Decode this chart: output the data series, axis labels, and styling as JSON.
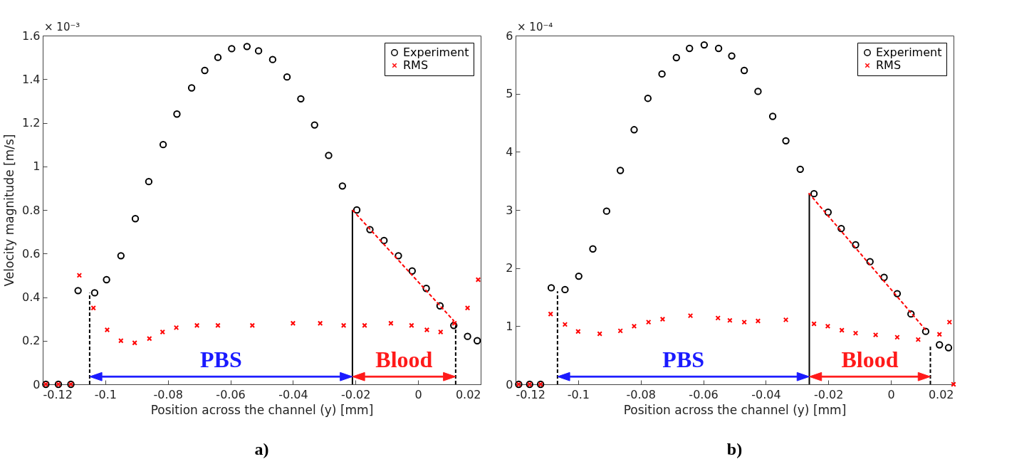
{
  "chart_data": [
    {
      "type": "scatter",
      "title": "a)",
      "xlabel": "Position across the channel (y) [mm]",
      "ylabel": "Velocity magnitude [m/s]",
      "xlim": [
        -0.12,
        0.02
      ],
      "xticks": [
        -0.12,
        -0.1,
        -0.08,
        -0.06,
        -0.04,
        -0.02,
        0,
        0.02
      ],
      "ylim": [
        0,
        1.6
      ],
      "yticks": [
        0,
        0.2,
        0.4,
        0.6,
        0.8,
        1,
        1.2,
        1.4,
        1.6
      ],
      "legend": "top right",
      "annotations": [
        "× 10⁻³",
        "PBS",
        "Blood"
      ],
      "series": [
        {
          "name": "Experiment",
          "marker": "circle",
          "color": "#000000",
          "x": [
            -0.119,
            -0.115,
            -0.111,
            -0.1087,
            -0.1034,
            -0.0996,
            -0.095,
            -0.0904,
            -0.0861,
            -0.0815,
            -0.0771,
            -0.0724,
            -0.0682,
            -0.064,
            -0.0596,
            -0.0547,
            -0.051,
            -0.0465,
            -0.0419,
            -0.0375,
            -0.0331,
            -0.0286,
            -0.0242,
            -0.0196,
            -0.0154,
            -0.0109,
            -0.0063,
            -0.0019,
            0.0026,
            0.007,
            0.0114,
            0.0158,
            0.0189
          ],
          "values": [
            0,
            0,
            0,
            0.43,
            0.42,
            0.48,
            0.59,
            0.76,
            0.93,
            1.1,
            1.24,
            1.36,
            1.44,
            1.5,
            1.54,
            1.55,
            1.53,
            1.49,
            1.41,
            1.31,
            1.19,
            1.05,
            0.91,
            0.8,
            0.71,
            0.66,
            0.59,
            0.52,
            0.44,
            0.36,
            0.27,
            0.22,
            0.2
          ]
        },
        {
          "name": "RMS",
          "marker": "cross",
          "color": "#ff0000",
          "x": [
            -0.119,
            -0.115,
            -0.111,
            -0.1083,
            -0.1038,
            -0.0994,
            -0.095,
            -0.0906,
            -0.0859,
            -0.0817,
            -0.0773,
            -0.0707,
            -0.064,
            -0.053,
            -0.04,
            -0.0313,
            -0.0238,
            -0.0171,
            -0.0087,
            -0.0021,
            0.0028,
            0.0072,
            0.0116,
            0.0158,
            0.0192
          ],
          "values": [
            0,
            0,
            0,
            0.5,
            0.35,
            0.25,
            0.2,
            0.19,
            0.21,
            0.24,
            0.26,
            0.27,
            0.27,
            0.27,
            0.28,
            0.28,
            0.27,
            0.27,
            0.28,
            0.27,
            0.25,
            0.24,
            0.28,
            0.35,
            0.48
          ]
        },
        {
          "type": "line",
          "color": "#000000",
          "line_style": "dashed",
          "x": [
            -0.105,
            -0.105
          ],
          "values": [
            0,
            0.42
          ]
        },
        {
          "type": "line",
          "color": "#000000",
          "line_style": "solid",
          "x": [
            -0.021,
            -0.021
          ],
          "values": [
            0,
            0.8
          ]
        },
        {
          "type": "line",
          "color": "#000000",
          "line_style": "dashed",
          "x": [
            0.012,
            0.012
          ],
          "values": [
            0,
            0.27
          ]
        },
        {
          "type": "line",
          "color": "#ff0000",
          "line_style": "dashed",
          "x": [
            -0.021,
            0.0115
          ],
          "values": [
            0.8,
            0.29
          ]
        }
      ]
    },
    {
      "type": "scatter",
      "title": "b)",
      "xlabel": "Position across the channel (y) [mm]",
      "xlim": [
        -0.12,
        0.02
      ],
      "xticks": [
        -0.12,
        -0.1,
        -0.08,
        -0.06,
        -0.04,
        -0.02,
        0,
        0.02
      ],
      "ylim": [
        0,
        6
      ],
      "yticks": [
        0,
        1,
        2,
        3,
        4,
        5,
        6
      ],
      "legend": "top right",
      "annotations": [
        "× 10⁻⁴",
        "PBS",
        "Blood"
      ],
      "series": [
        {
          "name": "Experiment",
          "marker": "circle",
          "color": "#000000",
          "x": [
            -0.119,
            -0.1155,
            -0.112,
            -0.1086,
            -0.1042,
            -0.0998,
            -0.0953,
            -0.0909,
            -0.0865,
            -0.0821,
            -0.0777,
            -0.0732,
            -0.0686,
            -0.0644,
            -0.0597,
            -0.0551,
            -0.0509,
            -0.0469,
            -0.0425,
            -0.0378,
            -0.0336,
            -0.029,
            -0.0246,
            -0.0201,
            -0.0159,
            -0.0113,
            -0.0067,
            -0.0022,
            0.002,
            0.0064,
            0.0111,
            0.0155,
            0.0184
          ],
          "values": [
            0,
            0,
            0,
            1.66,
            1.63,
            1.86,
            2.33,
            2.98,
            3.68,
            4.38,
            4.92,
            5.34,
            5.62,
            5.78,
            5.84,
            5.78,
            5.65,
            5.4,
            5.04,
            4.61,
            4.19,
            3.7,
            3.28,
            2.96,
            2.68,
            2.4,
            2.11,
            1.84,
            1.56,
            1.21,
            0.91,
            0.68,
            0.63
          ]
        },
        {
          "name": "RMS",
          "marker": "cross",
          "color": "#ff0000",
          "x": [
            -0.119,
            -0.1155,
            -0.112,
            -0.1088,
            -0.1042,
            -0.1,
            -0.0931,
            -0.0865,
            -0.0821,
            -0.0775,
            -0.073,
            -0.0641,
            -0.0553,
            -0.0515,
            -0.0469,
            -0.0425,
            -0.0336,
            -0.0246,
            -0.0202,
            -0.0157,
            -0.0113,
            -0.0049,
            0.002,
            0.0087,
            0.0155,
            0.0187,
            0.02
          ],
          "values": [
            0,
            0,
            0,
            1.21,
            1.03,
            0.91,
            0.87,
            0.92,
            1,
            1.07,
            1.12,
            1.18,
            1.14,
            1.1,
            1.07,
            1.09,
            1.11,
            1.04,
            1,
            0.93,
            0.88,
            0.85,
            0.81,
            0.77,
            0.86,
            1.07,
            0
          ]
        },
        {
          "type": "line",
          "color": "#000000",
          "line_style": "dashed",
          "x": [
            -0.1066,
            -0.1066
          ],
          "values": [
            0,
            1.6
          ]
        },
        {
          "type": "line",
          "color": "#000000",
          "line_style": "solid",
          "x": [
            -0.0261,
            -0.0261
          ],
          "values": [
            0,
            3.28
          ]
        },
        {
          "type": "line",
          "color": "#000000",
          "line_style": "dashed",
          "x": [
            0.0126,
            0.0126
          ],
          "values": [
            0,
            0.68
          ]
        },
        {
          "type": "line",
          "color": "#ff0000",
          "line_style": "dashed",
          "x": [
            -0.0263,
            0.0115
          ],
          "values": [
            3.29,
            0.91
          ]
        }
      ]
    }
  ]
}
